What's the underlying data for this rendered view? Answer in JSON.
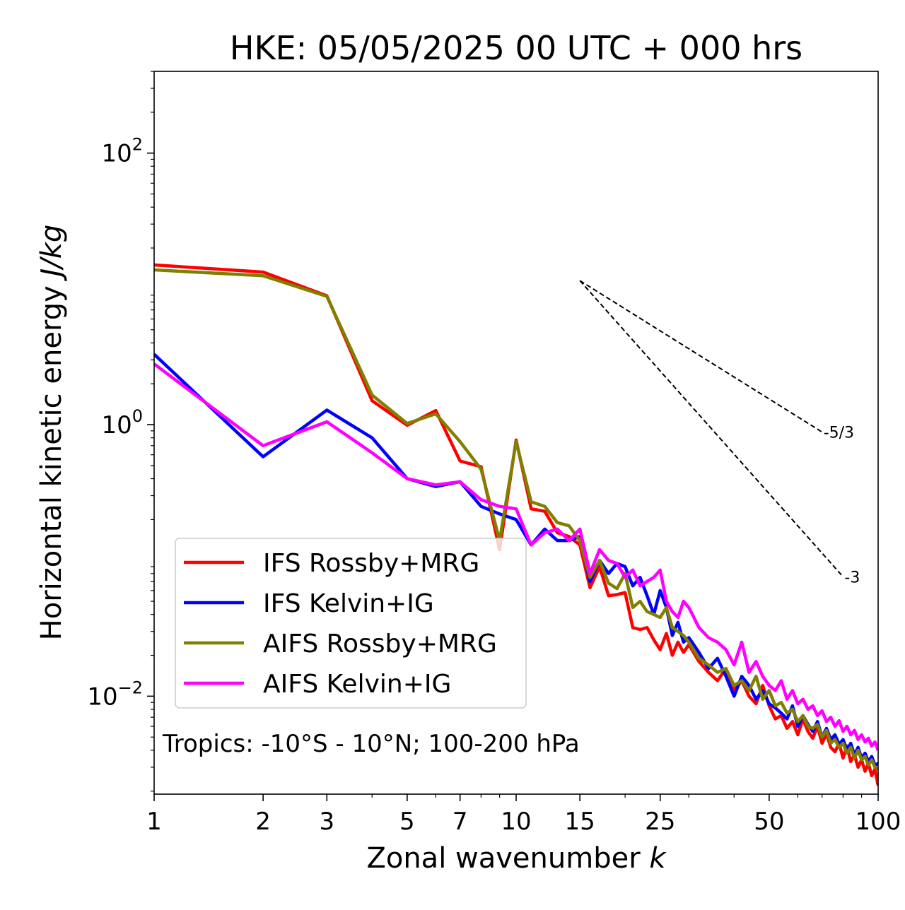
{
  "chart_data": {
    "type": "line",
    "title": "HKE: 05/05/2025 00 UTC + 000 hrs",
    "xlabel_text": "Zonal wavenumber ",
    "xlabel_var": "k",
    "ylabel_text": "Horizontal kinetic energy ",
    "ylabel_unit": "J/kg",
    "xscale": "log",
    "yscale": "log",
    "xlim": [
      1,
      100
    ],
    "ylim": [
      0.0019,
      400
    ],
    "xticks": [
      {
        "value": 1,
        "label": "1"
      },
      {
        "value": 2,
        "label": "2"
      },
      {
        "value": 3,
        "label": "3"
      },
      {
        "value": 5,
        "label": "5"
      },
      {
        "value": 7,
        "label": "7"
      },
      {
        "value": 10,
        "label": "10"
      },
      {
        "value": 15,
        "label": "15"
      },
      {
        "value": 25,
        "label": "25"
      },
      {
        "value": 50,
        "label": "50"
      },
      {
        "value": 100,
        "label": "100"
      }
    ],
    "yticks": [
      {
        "value": 0.01,
        "base": "10",
        "exp": "−2"
      },
      {
        "value": 1,
        "base": "10",
        "exp": "0"
      },
      {
        "value": 100,
        "base": "10",
        "exp": "2"
      }
    ],
    "annotation": "Tropics: -10°S - 10°N; 100-200 hPa",
    "legend_position": "lower-left",
    "reference_slopes": [
      {
        "label": "-5/3",
        "slope": -1.6667,
        "x0": 15,
        "y0": 11.5,
        "x1": 70
      },
      {
        "label": "-3",
        "slope": -3,
        "x0": 15,
        "y0": 11.5,
        "x1": 80
      }
    ],
    "series": [
      {
        "name": "IFS Rossby+MRG",
        "color": "#ff0000",
        "x": [
          1,
          2,
          3,
          4,
          5,
          6,
          7,
          8,
          9,
          10,
          11,
          12,
          13,
          14,
          15,
          16,
          17,
          18,
          19,
          20,
          21,
          22,
          23,
          24,
          25,
          26,
          27,
          28,
          29,
          30,
          32,
          34,
          36,
          38,
          40,
          42,
          44,
          46,
          48,
          50,
          52,
          54,
          56,
          58,
          60,
          62,
          64,
          66,
          68,
          70,
          72,
          74,
          76,
          78,
          80,
          82,
          84,
          86,
          88,
          90,
          92,
          94,
          96,
          98,
          100
        ],
        "y": [
          15,
          13.3,
          8.9,
          1.5,
          0.99,
          1.27,
          0.54,
          0.49,
          0.12,
          0.77,
          0.24,
          0.23,
          0.16,
          0.15,
          0.13,
          0.063,
          0.09,
          0.055,
          0.056,
          0.058,
          0.032,
          0.031,
          0.032,
          0.026,
          0.022,
          0.029,
          0.02,
          0.025,
          0.021,
          0.024,
          0.018,
          0.015,
          0.013,
          0.016,
          0.011,
          0.013,
          0.01,
          0.0088,
          0.012,
          0.0085,
          0.0068,
          0.0072,
          0.0058,
          0.0065,
          0.0052,
          0.0068,
          0.0055,
          0.0049,
          0.006,
          0.0045,
          0.0053,
          0.0042,
          0.0039,
          0.0045,
          0.0035,
          0.0043,
          0.0033,
          0.0037,
          0.003,
          0.0034,
          0.0028,
          0.0032,
          0.0026,
          0.0029,
          0.0022
        ]
      },
      {
        "name": "IFS Kelvin+IG",
        "color": "#0000ff",
        "x": [
          1,
          2,
          3,
          4,
          5,
          6,
          7,
          8,
          9,
          10,
          11,
          12,
          13,
          14,
          15,
          16,
          17,
          18,
          19,
          20,
          21,
          22,
          23,
          24,
          25,
          26,
          27,
          28,
          29,
          30,
          32,
          34,
          36,
          38,
          40,
          42,
          44,
          46,
          48,
          50,
          52,
          54,
          56,
          58,
          60,
          62,
          64,
          66,
          68,
          70,
          72,
          74,
          76,
          78,
          80,
          82,
          84,
          86,
          88,
          90,
          92,
          94,
          96,
          98,
          100
        ],
        "y": [
          3.3,
          0.58,
          1.28,
          0.8,
          0.4,
          0.35,
          0.38,
          0.25,
          0.22,
          0.2,
          0.13,
          0.17,
          0.14,
          0.14,
          0.15,
          0.07,
          0.1,
          0.08,
          0.095,
          0.09,
          0.065,
          0.075,
          0.055,
          0.04,
          0.06,
          0.045,
          0.028,
          0.035,
          0.025,
          0.027,
          0.021,
          0.016,
          0.019,
          0.014,
          0.01,
          0.014,
          0.012,
          0.0095,
          0.011,
          0.0088,
          0.0082,
          0.0075,
          0.0068,
          0.0085,
          0.006,
          0.0072,
          0.0062,
          0.0055,
          0.0065,
          0.005,
          0.0058,
          0.0048,
          0.0052,
          0.0044,
          0.0048,
          0.004,
          0.0045,
          0.0037,
          0.0042,
          0.0035,
          0.0038,
          0.0033,
          0.0036,
          0.0031,
          0.0032
        ]
      },
      {
        "name": "AIFS Rossby+MRG",
        "color": "#808000",
        "x": [
          1,
          2,
          3,
          4,
          5,
          6,
          7,
          8,
          9,
          10,
          11,
          12,
          13,
          14,
          15,
          16,
          17,
          18,
          19,
          20,
          21,
          22,
          23,
          24,
          25,
          26,
          27,
          28,
          29,
          30,
          32,
          34,
          36,
          38,
          40,
          42,
          44,
          46,
          48,
          50,
          52,
          54,
          56,
          58,
          60,
          62,
          64,
          66,
          68,
          70,
          72,
          74,
          76,
          78,
          80,
          82,
          84,
          86,
          88,
          90,
          92,
          94,
          96,
          98,
          100
        ],
        "y": [
          13.8,
          12.5,
          8.8,
          1.65,
          1.02,
          1.2,
          0.75,
          0.47,
          0.14,
          0.75,
          0.27,
          0.25,
          0.19,
          0.18,
          0.14,
          0.075,
          0.1,
          0.068,
          0.062,
          0.08,
          0.045,
          0.05,
          0.042,
          0.04,
          0.038,
          0.045,
          0.032,
          0.03,
          0.028,
          0.025,
          0.019,
          0.017,
          0.015,
          0.016,
          0.012,
          0.013,
          0.011,
          0.014,
          0.0095,
          0.011,
          0.0085,
          0.009,
          0.0075,
          0.008,
          0.0065,
          0.0072,
          0.006,
          0.0058,
          0.0062,
          0.005,
          0.0056,
          0.0045,
          0.0048,
          0.0042,
          0.0045,
          0.0038,
          0.0042,
          0.0035,
          0.004,
          0.0034,
          0.0036,
          0.0031,
          0.0034,
          0.003,
          0.0029
        ]
      },
      {
        "name": "AIFS Kelvin+IG",
        "color": "#ff00ff",
        "x": [
          1,
          2,
          3,
          4,
          5,
          6,
          7,
          8,
          9,
          10,
          11,
          12,
          13,
          14,
          15,
          16,
          17,
          18,
          19,
          20,
          21,
          22,
          23,
          24,
          25,
          26,
          27,
          28,
          29,
          30,
          32,
          34,
          36,
          38,
          40,
          42,
          44,
          46,
          48,
          50,
          52,
          54,
          56,
          58,
          60,
          62,
          64,
          66,
          68,
          70,
          72,
          74,
          76,
          78,
          80,
          82,
          84,
          86,
          88,
          90,
          92,
          94,
          96,
          98,
          100
        ],
        "y": [
          2.8,
          0.7,
          1.05,
          0.62,
          0.4,
          0.36,
          0.38,
          0.28,
          0.25,
          0.24,
          0.13,
          0.16,
          0.17,
          0.14,
          0.17,
          0.08,
          0.12,
          0.1,
          0.095,
          0.075,
          0.085,
          0.065,
          0.07,
          0.075,
          0.085,
          0.05,
          0.042,
          0.038,
          0.05,
          0.045,
          0.032,
          0.027,
          0.025,
          0.022,
          0.017,
          0.025,
          0.015,
          0.018,
          0.014,
          0.012,
          0.011,
          0.013,
          0.0095,
          0.011,
          0.0088,
          0.0095,
          0.008,
          0.0085,
          0.0072,
          0.0078,
          0.0065,
          0.007,
          0.006,
          0.0066,
          0.0055,
          0.006,
          0.0052,
          0.0056,
          0.0048,
          0.0052,
          0.0046,
          0.0049,
          0.0043,
          0.0046,
          0.004
        ]
      }
    ]
  }
}
